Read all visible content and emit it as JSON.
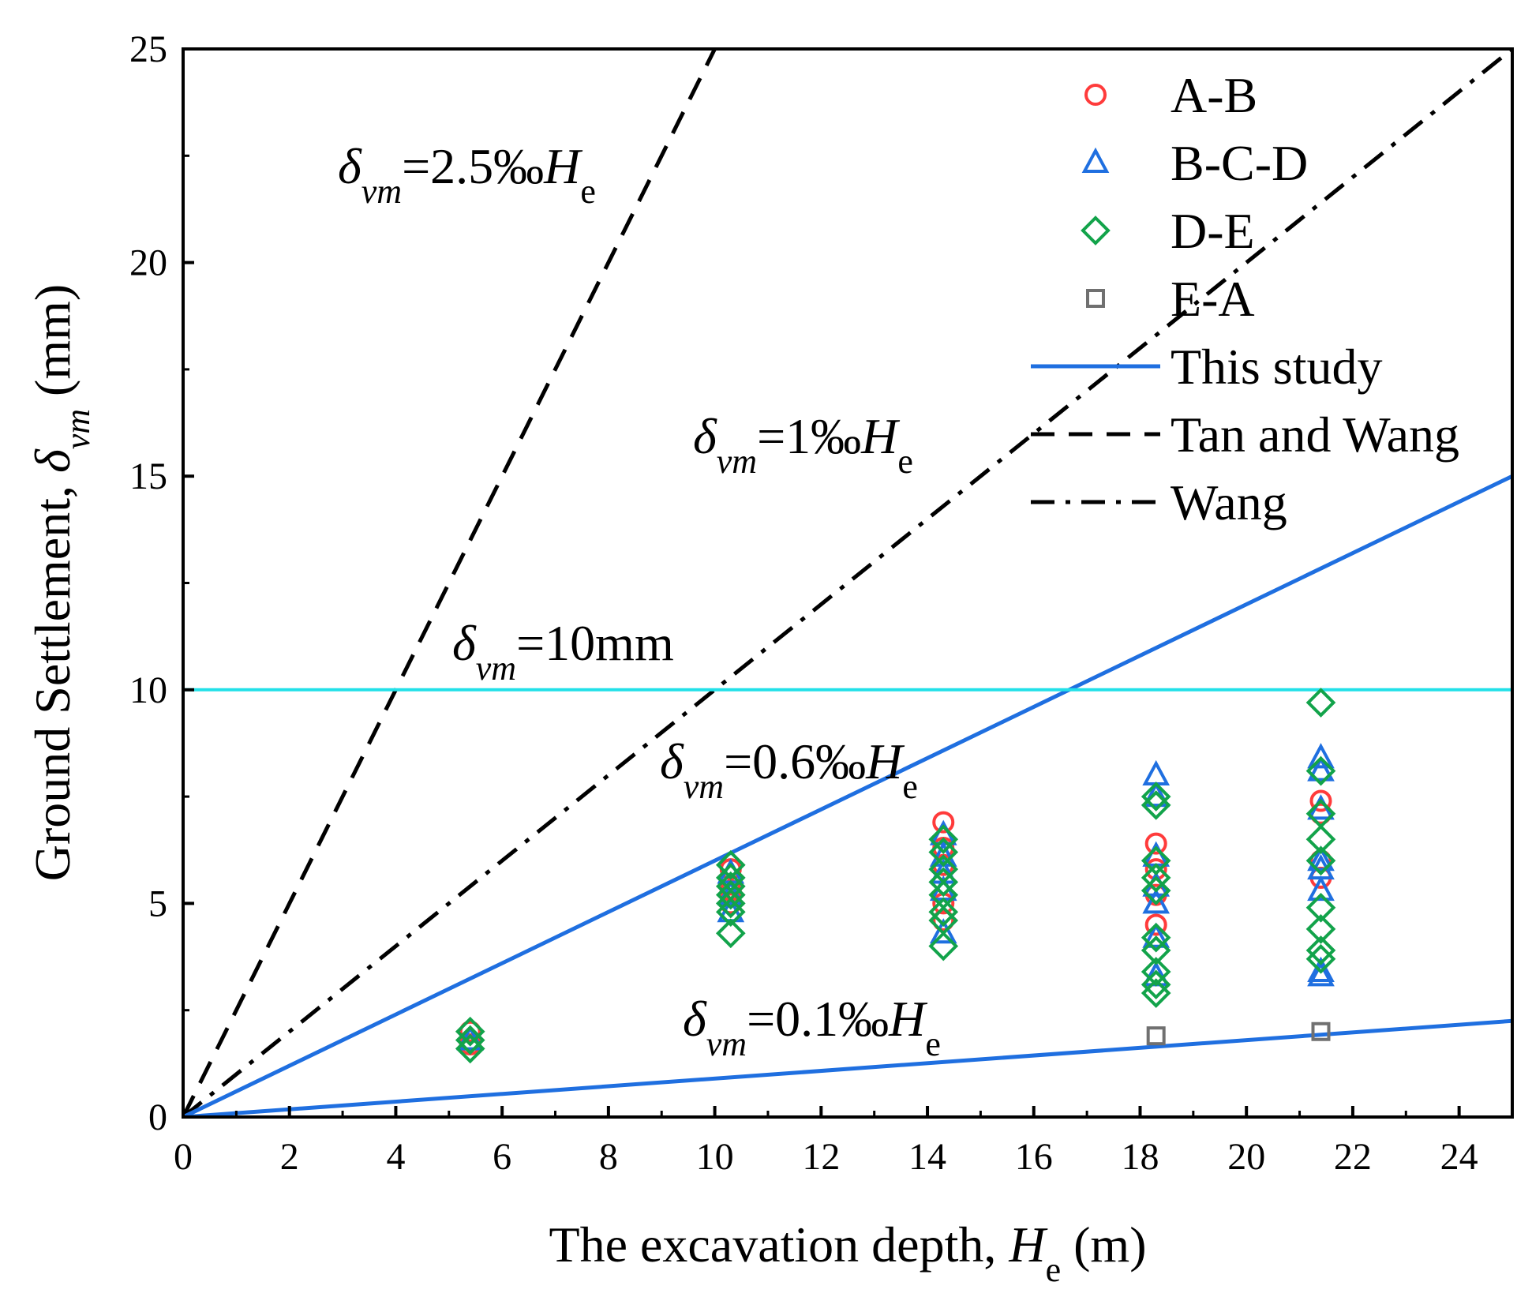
{
  "chart_data": {
    "type": "scatter",
    "xlabel": {
      "main": "The excavation depth, ",
      "sym": "H",
      "sub": "e",
      "unit": " (m)"
    },
    "ylabel": {
      "main": "Ground Settlement, ",
      "sym": "δ",
      "sub": "vm",
      "unit": " (mm)"
    },
    "xlim": [
      0,
      25
    ],
    "ylim": [
      0,
      25
    ],
    "xticks": [
      0,
      2,
      4,
      6,
      8,
      10,
      12,
      14,
      16,
      18,
      20,
      22,
      24
    ],
    "yticks": [
      0,
      5,
      10,
      15,
      20,
      25
    ],
    "xtick_labels": [
      "0",
      "2",
      "4",
      "6",
      "8",
      "10",
      "12",
      "14",
      "16",
      "18",
      "20",
      "22",
      "24"
    ],
    "ytick_labels": [
      "0",
      "5",
      "10",
      "15",
      "20",
      "25"
    ],
    "legend_position": "top-right",
    "legend": [
      {
        "key": "ab",
        "label": "A-B",
        "kind": "marker",
        "marker": "circle",
        "color": "#ff3b3b"
      },
      {
        "key": "bcd",
        "label": "B-C-D",
        "kind": "marker",
        "marker": "triangle",
        "color": "#1f6fe0"
      },
      {
        "key": "de",
        "label": "D-E",
        "kind": "marker",
        "marker": "diamond",
        "color": "#12a34a"
      },
      {
        "key": "ea",
        "label": "E-A",
        "kind": "marker",
        "marker": "square",
        "color": "#707070"
      },
      {
        "key": "this",
        "label": "This study",
        "kind": "line",
        "dash": "solid",
        "color": "#1f6fe0"
      },
      {
        "key": "tan",
        "label": "Tan and Wang",
        "kind": "line",
        "dash": "dash",
        "color": "#000000"
      },
      {
        "key": "wang",
        "label": "Wang",
        "kind": "line",
        "dash": "dashdot",
        "color": "#000000"
      }
    ],
    "lines": [
      {
        "name": "2.5‰He",
        "group": "tan",
        "slope": 2.5,
        "color": "#000000",
        "dash": "dash"
      },
      {
        "name": "1‰He",
        "group": "wang",
        "slope": 1.0,
        "color": "#000000",
        "dash": "dashdot"
      },
      {
        "name": "0.6‰He",
        "group": "this",
        "slope": 0.6,
        "color": "#1f6fe0",
        "dash": "solid"
      },
      {
        "name": "0.09‰He",
        "group": "this",
        "slope": 0.09,
        "color": "#1f6fe0",
        "dash": "solid"
      },
      {
        "name": "10mm",
        "group": "limit",
        "y": 10,
        "color": "#22e0e8",
        "dash": "solid"
      }
    ],
    "annotations": [
      {
        "key": "a25",
        "sym": "δ",
        "sub": "vm",
        "text": "=2.5‰",
        "sym2": "H",
        "sub2": "e"
      },
      {
        "key": "a1",
        "sym": "δ",
        "sub": "vm",
        "text": "=1‰",
        "sym2": "H",
        "sub2": "e"
      },
      {
        "key": "a10",
        "sym": "δ",
        "sub": "vm",
        "text": "=10mm",
        "sym2": "",
        "sub2": ""
      },
      {
        "key": "a06",
        "sym": "δ",
        "sub": "vm",
        "text": "=0.6‰",
        "sym2": "H",
        "sub2": "e"
      },
      {
        "key": "a01",
        "sym": "δ",
        "sub": "vm",
        "text": "=0.1‰",
        "sym2": "H",
        "sub2": "e"
      }
    ],
    "series": [
      {
        "name": "A-B",
        "marker": "circle",
        "color": "#ff3b3b",
        "points": [
          [
            5.4,
            2.0
          ],
          [
            5.4,
            1.7
          ],
          [
            10.3,
            5.8
          ],
          [
            10.3,
            5.3
          ],
          [
            10.3,
            5.0
          ],
          [
            14.3,
            6.9
          ],
          [
            14.3,
            6.3
          ],
          [
            14.3,
            5.9
          ],
          [
            14.3,
            5.0
          ],
          [
            14.3,
            4.6
          ],
          [
            18.3,
            6.4
          ],
          [
            18.3,
            5.8
          ],
          [
            18.3,
            5.2
          ],
          [
            18.3,
            4.5
          ],
          [
            21.4,
            7.4
          ],
          [
            21.4,
            7.1
          ],
          [
            21.4,
            6.0
          ],
          [
            21.4,
            5.6
          ]
        ]
      },
      {
        "name": "B-C-D",
        "marker": "triangle",
        "color": "#1f6fe0",
        "points": [
          [
            5.4,
            1.8
          ],
          [
            10.3,
            5.7
          ],
          [
            10.3,
            5.2
          ],
          [
            10.3,
            4.8
          ],
          [
            14.3,
            6.6
          ],
          [
            14.3,
            6.1
          ],
          [
            14.3,
            5.7
          ],
          [
            14.3,
            5.3
          ],
          [
            14.3,
            4.3
          ],
          [
            18.3,
            8.0
          ],
          [
            18.3,
            7.5
          ],
          [
            18.3,
            6.1
          ],
          [
            18.3,
            5.4
          ],
          [
            18.3,
            5.0
          ],
          [
            18.3,
            4.2
          ],
          [
            18.3,
            3.3
          ],
          [
            21.4,
            8.4
          ],
          [
            21.4,
            8.1
          ],
          [
            21.4,
            7.2
          ],
          [
            21.4,
            6.0
          ],
          [
            21.4,
            5.8
          ],
          [
            21.4,
            5.3
          ],
          [
            21.4,
            3.4
          ],
          [
            21.4,
            3.3
          ]
        ]
      },
      {
        "name": "D-E",
        "marker": "diamond",
        "color": "#12a34a",
        "points": [
          [
            5.4,
            2.0
          ],
          [
            5.4,
            1.8
          ],
          [
            5.4,
            1.6
          ],
          [
            10.3,
            5.9
          ],
          [
            10.3,
            5.6
          ],
          [
            10.3,
            5.4
          ],
          [
            10.3,
            5.2
          ],
          [
            10.3,
            5.0
          ],
          [
            10.3,
            4.8
          ],
          [
            10.3,
            4.3
          ],
          [
            14.3,
            6.5
          ],
          [
            14.3,
            6.2
          ],
          [
            14.3,
            5.8
          ],
          [
            14.3,
            5.5
          ],
          [
            14.3,
            5.2
          ],
          [
            14.3,
            4.8
          ],
          [
            14.3,
            4.6
          ],
          [
            14.3,
            4.0
          ],
          [
            18.3,
            7.5
          ],
          [
            18.3,
            7.3
          ],
          [
            18.3,
            6.0
          ],
          [
            18.3,
            5.6
          ],
          [
            18.3,
            5.3
          ],
          [
            18.3,
            4.2
          ],
          [
            18.3,
            3.9
          ],
          [
            18.3,
            3.4
          ],
          [
            18.3,
            3.1
          ],
          [
            18.3,
            2.9
          ],
          [
            21.4,
            9.7
          ],
          [
            21.4,
            8.1
          ],
          [
            21.4,
            7.1
          ],
          [
            21.4,
            6.5
          ],
          [
            21.4,
            6.0
          ],
          [
            21.4,
            4.9
          ],
          [
            21.4,
            4.4
          ],
          [
            21.4,
            3.9
          ],
          [
            21.4,
            3.7
          ]
        ]
      },
      {
        "name": "E-A",
        "marker": "square",
        "color": "#707070",
        "points": [
          [
            18.3,
            1.9
          ],
          [
            21.4,
            2.0
          ]
        ]
      }
    ]
  }
}
